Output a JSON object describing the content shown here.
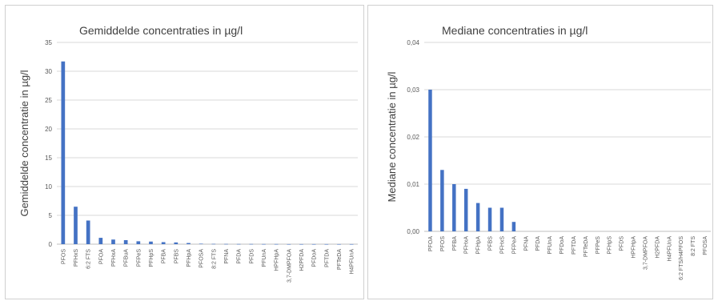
{
  "chart_data": [
    {
      "type": "bar",
      "title": "Gemiddelde concentraties in µg/l",
      "ylabel": "Gemiddelde concentratie in µg/l",
      "xlabel": "",
      "ylim": [
        0,
        35
      ],
      "yticks": [
        "0",
        "5",
        "10",
        "15",
        "20",
        "25",
        "30",
        "35"
      ],
      "ytick_values": [
        0,
        5,
        10,
        15,
        20,
        25,
        30,
        35
      ],
      "grid": true,
      "bar_color": "#4472c4",
      "categories": [
        "PFOS",
        "PFHxS",
        "6:2 FTS",
        "PFOA",
        "PFHxA",
        "PFBuA",
        "PFPeS",
        "PFHpS",
        "PFBA",
        "PFBS",
        "PFHpA",
        "PFOSA",
        "8:2 FTS",
        "PFNA",
        "PFDA",
        "PFDS",
        "PFUnA",
        "HPFHpA",
        "3,7-DMPFOA",
        "H2PFDA",
        "PFDoA",
        "PFTDA",
        "PFTeDA",
        "H4PFUnA"
      ],
      "values": [
        31.7,
        6.5,
        4.1,
        1.1,
        0.8,
        0.7,
        0.5,
        0.45,
        0.35,
        0.3,
        0.2,
        0.08,
        0.05,
        0.04,
        0.03,
        0.03,
        0.02,
        0.02,
        0.01,
        0.01,
        0.01,
        0.01,
        0.01,
        0.01
      ]
    },
    {
      "type": "bar",
      "title": "Mediane concentraties in µg/l",
      "ylabel": "Mediane concentratie in µg/l",
      "xlabel": "",
      "ylim": [
        0,
        0.04
      ],
      "yticks": [
        "0,00",
        "0,01",
        "0,02",
        "0,03",
        "0,04"
      ],
      "ytick_values": [
        0,
        0.01,
        0.02,
        0.03,
        0.04
      ],
      "grid": true,
      "bar_color": "#4472c4",
      "categories": [
        "PFOA",
        "PFOS",
        "PFBA",
        "PFHxA",
        "PFHpA",
        "PFBS",
        "PFHxS",
        "PFPeA",
        "PFNA",
        "PFDA",
        "PFUnA",
        "PFDoA",
        "PFTDA",
        "PFTeDA",
        "PFPeS",
        "PFHpS",
        "PFDS",
        "HPFHpA",
        "3,7-DMPFOA",
        "H2PFDA",
        "H4PFUnA",
        "6:2 FTS/H4PFOS",
        "8:2 FTS",
        "PFOSA"
      ],
      "values": [
        0.03,
        0.013,
        0.01,
        0.009,
        0.006,
        0.005,
        0.005,
        0.002,
        0,
        0,
        0,
        0,
        0,
        0,
        0,
        0,
        0,
        0,
        0,
        0,
        0,
        0,
        0,
        0
      ]
    }
  ]
}
